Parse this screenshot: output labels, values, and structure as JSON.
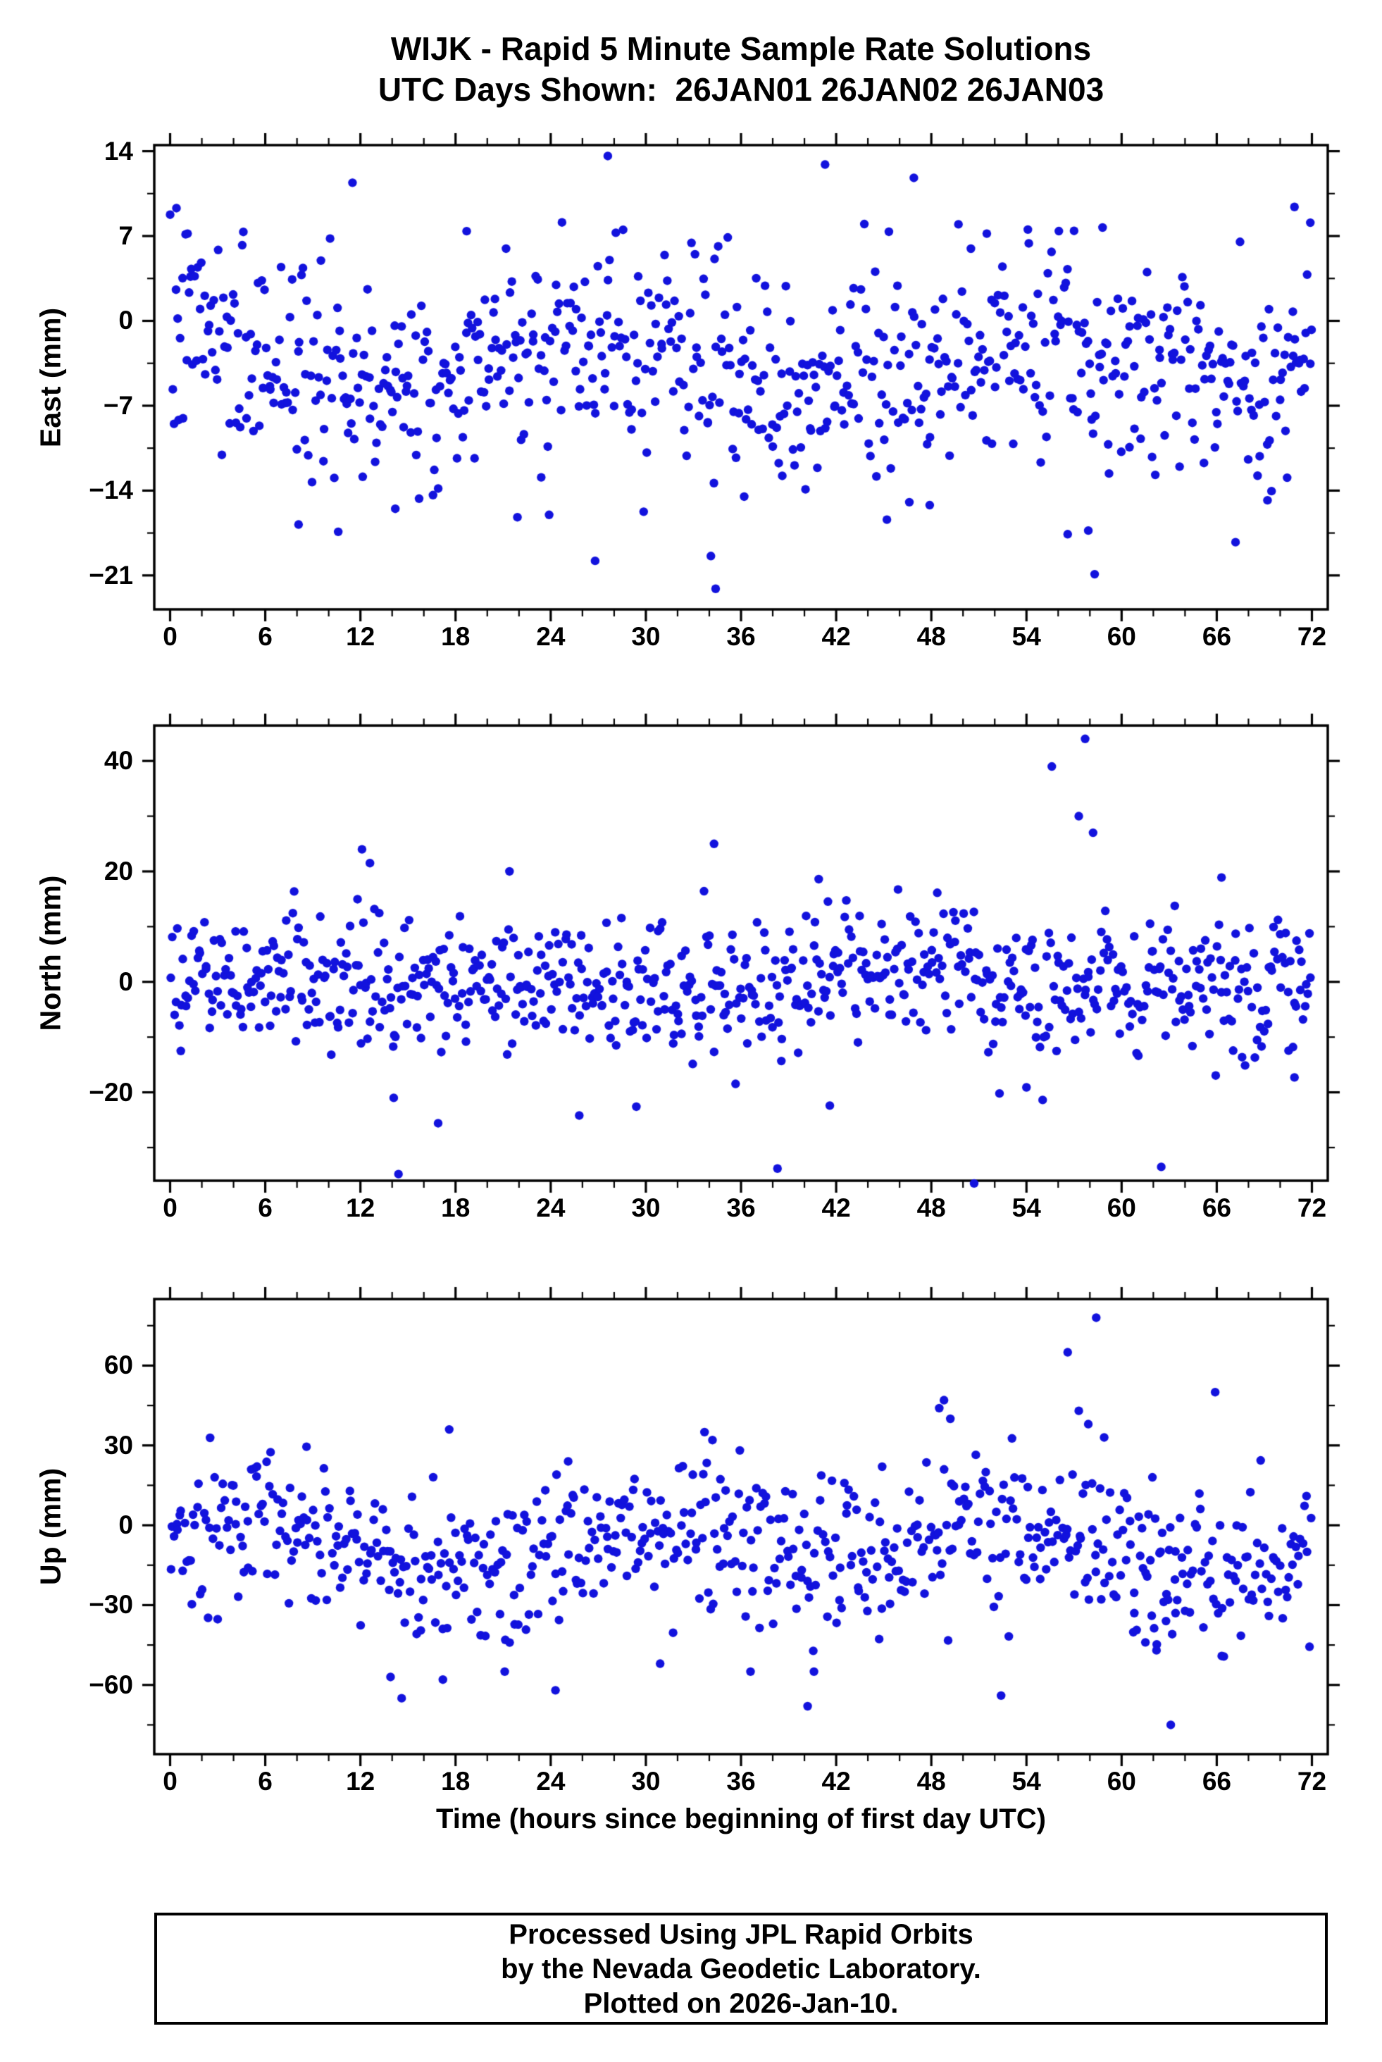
{
  "header": {
    "line1": "WIJK - Rapid 5 Minute Sample Rate Solutions",
    "line2": "UTC Days Shown:  26JAN01 26JAN02 26JAN03"
  },
  "xlabel": "Time (hours since beginning of first day UTC)",
  "footer": {
    "lines": [
      "Processed Using JPL Rapid Orbits",
      "by the Nevada Geodetic Laboratory.",
      "Plotted on 2026-Jan-10."
    ]
  },
  "chart_data": [
    {
      "type": "scatter",
      "series_name": "East",
      "ylabel": "East (mm)",
      "marker_color": "#1212dd",
      "xlim": [
        -1,
        73
      ],
      "ylim": [
        -23.8,
        14.5
      ],
      "xticks": [
        0,
        6,
        12,
        18,
        24,
        30,
        36,
        42,
        48,
        54,
        60,
        66,
        72
      ],
      "yticks": [
        14,
        7,
        0,
        -7,
        -14,
        -21
      ],
      "x_minor_step": 2,
      "y_minor_step": 3.5,
      "grid": false,
      "n_points": 720,
      "seed": 7,
      "mean": -3.3,
      "std": 4.4,
      "clip": [
        -18.5,
        8.8
      ],
      "wave": [
        {
          "amp": 1.3,
          "period": 24,
          "phase": 0.8
        },
        {
          "amp": 1.0,
          "period": 30,
          "phase": 2.1
        }
      ],
      "outliers": [
        [
          0.4,
          9.3
        ],
        [
          1.1,
          7.2
        ],
        [
          11.5,
          11.4
        ],
        [
          18.7,
          7.4
        ],
        [
          27.6,
          13.6
        ],
        [
          41.3,
          12.9
        ],
        [
          46.9,
          11.8
        ],
        [
          51.5,
          7.2
        ],
        [
          58.8,
          7.7
        ],
        [
          70.9,
          9.4
        ],
        [
          71.9,
          8.1
        ],
        [
          8.1,
          -16.8
        ],
        [
          10.6,
          -17.4
        ],
        [
          14.2,
          -15.5
        ],
        [
          21.9,
          -16.2
        ],
        [
          23.9,
          -16.0
        ],
        [
          26.8,
          -19.8
        ],
        [
          34.1,
          -19.4
        ],
        [
          34.4,
          -22.1
        ],
        [
          36.2,
          -14.5
        ],
        [
          45.2,
          -16.4
        ],
        [
          47.9,
          -15.2
        ],
        [
          56.6,
          -17.6
        ],
        [
          57.9,
          -17.3
        ],
        [
          58.3,
          -20.9
        ],
        [
          69.2,
          -14.8
        ]
      ]
    },
    {
      "type": "scatter",
      "series_name": "North",
      "ylabel": "North (mm)",
      "marker_color": "#1212dd",
      "xlim": [
        -1,
        73
      ],
      "ylim": [
        -36.0,
        46.4
      ],
      "xticks": [
        0,
        6,
        12,
        18,
        24,
        30,
        36,
        42,
        48,
        54,
        60,
        66,
        72
      ],
      "yticks": [
        40,
        20,
        0,
        -20
      ],
      "x_minor_step": 2,
      "y_minor_step": 10,
      "grid": false,
      "n_points": 730,
      "seed": 21,
      "mean": 0.3,
      "std": 6.1,
      "clip": [
        -23.0,
        18.5
      ],
      "wave": [
        {
          "amp": 1.5,
          "period": 24,
          "phase": 2.0
        },
        {
          "amp": 1.2,
          "period": 40,
          "phase": 0.6
        }
      ],
      "outliers": [
        [
          57.7,
          44.0
        ],
        [
          55.6,
          39.0
        ],
        [
          57.3,
          30.0
        ],
        [
          58.2,
          27.0
        ],
        [
          34.3,
          25.0
        ],
        [
          12.1,
          24.0
        ],
        [
          12.6,
          21.5
        ],
        [
          21.4,
          20.0
        ],
        [
          66.3,
          18.9
        ],
        [
          40.9,
          18.6
        ],
        [
          14.4,
          -34.8
        ],
        [
          50.7,
          -36.5
        ],
        [
          38.3,
          -33.8
        ],
        [
          62.5,
          -33.5
        ],
        [
          16.9,
          -25.6
        ],
        [
          25.8,
          -24.2
        ],
        [
          29.4,
          -22.6
        ],
        [
          41.6,
          -22.4
        ],
        [
          14.1,
          -21.0
        ],
        [
          52.3,
          -20.2
        ],
        [
          54.0,
          -19.1
        ],
        [
          70.9,
          -17.3
        ]
      ]
    },
    {
      "type": "scatter",
      "series_name": "Up",
      "ylabel": "Up (mm)",
      "marker_color": "#1212dd",
      "xlim": [
        -1,
        73
      ],
      "ylim": [
        -86.0,
        85.0
      ],
      "xticks": [
        0,
        6,
        12,
        18,
        24,
        30,
        36,
        42,
        48,
        54,
        60,
        66,
        72
      ],
      "yticks": [
        60,
        30,
        0,
        -30,
        -60
      ],
      "x_minor_step": 2,
      "y_minor_step": 15,
      "grid": false,
      "n_points": 660,
      "seed": 33,
      "mean": -8.5,
      "std": 14.5,
      "clip": [
        -50.0,
        33.0
      ],
      "wave": [
        {
          "amp": 7,
          "period": 24,
          "phase": 0
        },
        {
          "amp": 4,
          "period": 36,
          "phase": 0
        }
      ],
      "outliers": [
        [
          58.4,
          78.0
        ],
        [
          56.6,
          65.0
        ],
        [
          65.9,
          50.0
        ],
        [
          48.8,
          47.0
        ],
        [
          48.5,
          44.0
        ],
        [
          57.3,
          43.0
        ],
        [
          49.2,
          40.0
        ],
        [
          57.9,
          38.0
        ],
        [
          17.6,
          36.0
        ],
        [
          33.7,
          35.0
        ],
        [
          34.2,
          32.0
        ],
        [
          58.9,
          33.0
        ],
        [
          8.6,
          29.5
        ],
        [
          25.1,
          24.0
        ],
        [
          44.9,
          22.0
        ],
        [
          63.1,
          -75.0
        ],
        [
          40.2,
          -68.0
        ],
        [
          14.6,
          -65.0
        ],
        [
          24.3,
          -62.0
        ],
        [
          52.4,
          -64.0
        ],
        [
          17.2,
          -58.0
        ],
        [
          13.9,
          -57.0
        ],
        [
          21.1,
          -55.0
        ],
        [
          36.6,
          -55.0
        ],
        [
          40.6,
          -55.0
        ],
        [
          30.9,
          -52.0
        ],
        [
          62.2,
          -47.0
        ],
        [
          61.5,
          -44.0
        ],
        [
          60.8,
          -33.0
        ],
        [
          61.9,
          -34.0
        ],
        [
          62.8,
          -36.0
        ],
        [
          63.4,
          -33.0
        ]
      ]
    }
  ]
}
